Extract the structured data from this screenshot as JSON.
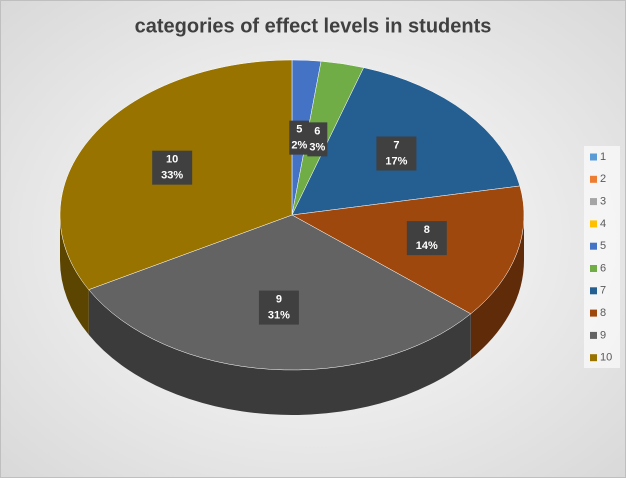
{
  "chart_data": {
    "type": "pie",
    "title": "categories of effect levels in students",
    "categories": [
      "1",
      "2",
      "3",
      "4",
      "5",
      "6",
      "7",
      "8",
      "9",
      "10"
    ],
    "values": [
      0,
      0,
      0,
      0,
      2,
      3,
      17,
      14,
      31,
      33
    ],
    "value_labels": [
      null,
      null,
      null,
      null,
      "2%",
      "3%",
      "17%",
      "14%",
      "31%",
      "33%"
    ],
    "colors": [
      "#5b9bd5",
      "#ed7d31",
      "#a5a5a5",
      "#ffc000",
      "#4472c4",
      "#70ad47",
      "#255e91",
      "#9e480e",
      "#636363",
      "#997300"
    ],
    "legend": "right"
  }
}
